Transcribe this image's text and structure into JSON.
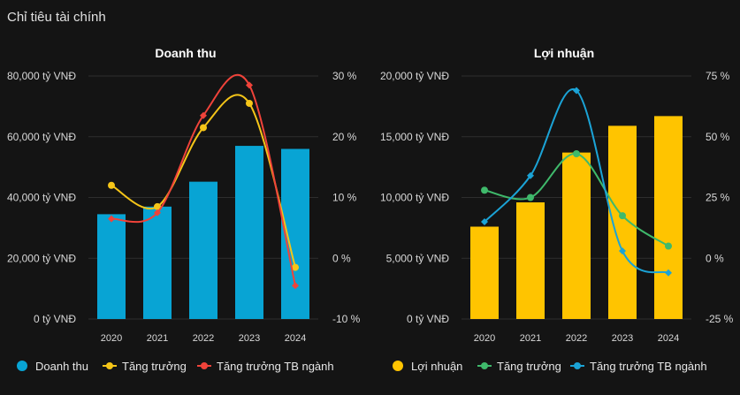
{
  "page": {
    "title": "Chỉ tiêu tài chính"
  },
  "colors": {
    "revenue_bar": "#08a4d4",
    "revenue_growth": "#f5c518",
    "revenue_industry": "#f0433a",
    "profit_bar": "#ffc400",
    "profit_growth": "#3fb96b",
    "profit_industry": "#1ba3d6"
  },
  "chart_data": [
    {
      "type": "bar",
      "title": "Doanh thu",
      "categories": [
        "2020",
        "2021",
        "2022",
        "2023",
        "2024"
      ],
      "y_ticks": [
        "80,000 tỷ VNĐ",
        "60,000 tỷ VNĐ",
        "40,000 tỷ VNĐ",
        "20,000 tỷ VNĐ",
        "0 tỷ VNĐ"
      ],
      "ylim": [
        0,
        80000
      ],
      "y2_ticks": [
        "30 %",
        "20 %",
        "10 %",
        "0 %",
        "-10 %"
      ],
      "y2lim": [
        -10,
        30
      ],
      "grid": true,
      "legend_position": "bottom",
      "series": [
        {
          "name": "Doanh thu",
          "type": "bar",
          "axis": "left",
          "values": [
            34500,
            37000,
            45200,
            57000,
            56000
          ]
        },
        {
          "name": "Tăng trưởng",
          "type": "line",
          "axis": "right",
          "values": [
            12.0,
            8.5,
            21.5,
            25.5,
            -1.5
          ]
        },
        {
          "name": "Tăng trưởng TB ngành",
          "type": "line",
          "axis": "right",
          "values": [
            6.5,
            7.5,
            23.5,
            28.5,
            -4.5
          ]
        }
      ]
    },
    {
      "type": "bar",
      "title": "Lợi nhuận",
      "categories": [
        "2020",
        "2021",
        "2022",
        "2023",
        "2024"
      ],
      "y_ticks": [
        "20,000 tỷ VNĐ",
        "15,000 tỷ VNĐ",
        "10,000 tỷ VNĐ",
        "5,000 tỷ VNĐ",
        "0 tỷ VNĐ"
      ],
      "ylim": [
        0,
        20000
      ],
      "y2_ticks": [
        "75 %",
        "50 %",
        "25 %",
        "0 %",
        "-25 %"
      ],
      "y2lim": [
        -25,
        75
      ],
      "grid": true,
      "legend_position": "bottom",
      "series": [
        {
          "name": "Lợi nhuận",
          "type": "bar",
          "axis": "left",
          "values": [
            7600,
            9600,
            13700,
            15900,
            16700
          ]
        },
        {
          "name": "Tăng trưởng",
          "type": "line",
          "axis": "right",
          "values": [
            28,
            25,
            43,
            17.5,
            5
          ]
        },
        {
          "name": "Tăng trưởng TB ngành",
          "type": "line",
          "axis": "right",
          "values": [
            15,
            34,
            69,
            3,
            -6
          ]
        }
      ]
    }
  ]
}
